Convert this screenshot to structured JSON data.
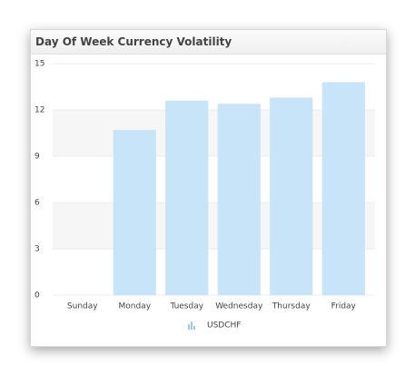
{
  "chart_data": {
    "type": "bar",
    "title": "Day Of Week Currency Volatility",
    "categories": [
      "Sunday",
      "Monday",
      "Tuesday",
      "Wednesday",
      "Thursday",
      "Friday"
    ],
    "series": [
      {
        "name": "USDCHF",
        "color": "#c7e4f9",
        "values": [
          0,
          10.7,
          12.6,
          12.4,
          12.8,
          13.8
        ]
      }
    ],
    "ylim": [
      0,
      15
    ],
    "yticks": [
      0,
      3,
      6,
      9,
      12,
      15
    ],
    "grid": true,
    "alternate_bands": true,
    "legend": "bottom"
  }
}
